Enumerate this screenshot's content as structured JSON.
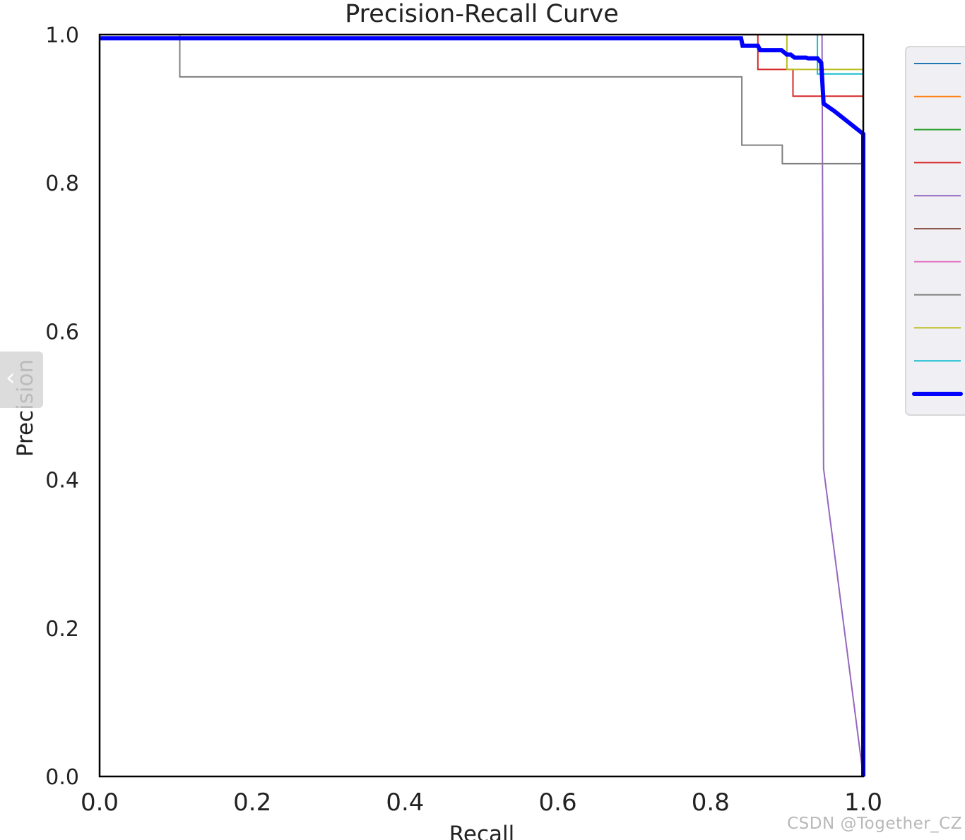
{
  "chart_data": {
    "type": "line",
    "title": "Precision-Recall Curve",
    "xlabel": "Recall",
    "ylabel": "Precision",
    "xlim": [
      0,
      1
    ],
    "ylim": [
      0,
      1
    ],
    "xticks": [
      0.0,
      0.2,
      0.4,
      0.6,
      0.8,
      1.0
    ],
    "yticks": [
      0.0,
      0.2,
      0.4,
      0.6,
      0.8,
      1.0
    ],
    "xtick_labels": [
      "0.0",
      "0.2",
      "0.4",
      "0.6",
      "0.8",
      "1.0"
    ],
    "ytick_labels": [
      "0.0",
      "0.2",
      "0.4",
      "0.6",
      "0.8",
      "1.0"
    ],
    "grid": false,
    "legend_placement": "right",
    "series": [
      {
        "color": "#1f77b4",
        "width": 2,
        "points": [
          [
            0,
            1
          ],
          [
            1,
            1
          ],
          [
            1,
            0
          ]
        ]
      },
      {
        "color": "#ff7f0e",
        "width": 2,
        "points": [
          [
            0,
            1
          ],
          [
            1,
            1
          ],
          [
            1,
            0
          ]
        ]
      },
      {
        "color": "#2ca02c",
        "width": 2,
        "points": [
          [
            0,
            1
          ],
          [
            1,
            1
          ],
          [
            1,
            0
          ]
        ]
      },
      {
        "color": "#d62728",
        "width": 2,
        "points": [
          [
            0,
            1
          ],
          [
            0.862,
            1
          ],
          [
            0.862,
            0.953
          ],
          [
            0.908,
            0.953
          ],
          [
            0.908,
            0.917
          ],
          [
            1,
            0.917
          ],
          [
            1,
            1
          ],
          [
            1,
            0
          ]
        ]
      },
      {
        "color": "#9467bd",
        "width": 2,
        "points": [
          [
            0,
            1
          ],
          [
            0.946,
            1
          ],
          [
            0.948,
            0.415
          ],
          [
            1,
            0
          ]
        ]
      },
      {
        "color": "#8c564b",
        "width": 2,
        "points": [
          [
            0,
            1
          ],
          [
            1,
            1
          ],
          [
            1,
            0
          ]
        ]
      },
      {
        "color": "#e377c2",
        "width": 2,
        "points": [
          [
            0,
            1
          ],
          [
            1,
            1
          ],
          [
            1,
            0
          ]
        ]
      },
      {
        "color": "#7f7f7f",
        "width": 2,
        "points": [
          [
            0,
            1
          ],
          [
            0.105,
            1
          ],
          [
            0.105,
            0.943
          ],
          [
            0.841,
            0.943
          ],
          [
            0.841,
            0.851
          ],
          [
            0.894,
            0.851
          ],
          [
            0.894,
            0.826
          ],
          [
            1,
            0.826
          ],
          [
            1,
            0
          ]
        ]
      },
      {
        "color": "#bcbd22",
        "width": 2,
        "points": [
          [
            0,
            1
          ],
          [
            0.9,
            1
          ],
          [
            0.9,
            0.953
          ],
          [
            1,
            0.953
          ],
          [
            1,
            0
          ]
        ]
      },
      {
        "color": "#17becf",
        "width": 2,
        "points": [
          [
            0,
            1
          ],
          [
            0.94,
            1
          ],
          [
            0.94,
            0.947
          ],
          [
            1,
            0.947
          ],
          [
            1,
            0
          ]
        ]
      },
      {
        "color": "#0000ff",
        "width": 6,
        "points": [
          [
            0,
            0.995
          ],
          [
            0.105,
            0.995
          ],
          [
            0.84,
            0.995
          ],
          [
            0.842,
            0.985
          ],
          [
            0.862,
            0.985
          ],
          [
            0.865,
            0.979
          ],
          [
            0.893,
            0.979
          ],
          [
            0.9,
            0.973
          ],
          [
            0.905,
            0.973
          ],
          [
            0.91,
            0.969
          ],
          [
            0.925,
            0.969
          ],
          [
            0.928,
            0.968
          ],
          [
            0.94,
            0.968
          ],
          [
            0.945,
            0.962
          ],
          [
            0.948,
            0.907
          ],
          [
            0.962,
            0.897
          ],
          [
            1,
            0.866
          ],
          [
            1,
            0
          ]
        ]
      }
    ]
  },
  "watermark": "CSDN @Together_CZ",
  "colors": {
    "axis": "#000000",
    "legend_background": "#f0f0f4",
    "legend_border": "#d8d8d8",
    "nav_tab": "#d6d6d6"
  },
  "icons": {
    "nav_previous": "chevron-left-icon"
  }
}
